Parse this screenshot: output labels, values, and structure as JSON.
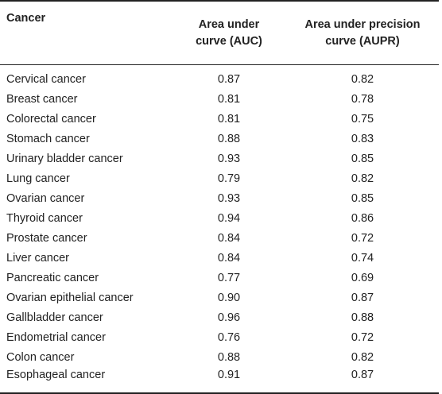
{
  "table": {
    "headers": {
      "cancer": "Cancer",
      "auc_line1": "Area under",
      "auc_line2": "curve (AUC)",
      "aupr_line1": "Area under precision",
      "aupr_line2": "curve (AUPR)"
    },
    "rows": [
      {
        "cancer": "Cervical cancer",
        "auc": "0.87",
        "aupr": "0.82"
      },
      {
        "cancer": "Breast cancer",
        "auc": "0.81",
        "aupr": "0.78"
      },
      {
        "cancer": "Colorectal cancer",
        "auc": "0.81",
        "aupr": "0.75"
      },
      {
        "cancer": "Stomach cancer",
        "auc": "0.88",
        "aupr": "0.83"
      },
      {
        "cancer": "Urinary bladder cancer",
        "auc": "0.93",
        "aupr": "0.85"
      },
      {
        "cancer": "Lung cancer",
        "auc": "0.79",
        "aupr": "0.82"
      },
      {
        "cancer": "Ovarian cancer",
        "auc": "0.93",
        "aupr": "0.85"
      },
      {
        "cancer": "Thyroid cancer",
        "auc": "0.94",
        "aupr": "0.86"
      },
      {
        "cancer": "Prostate cancer",
        "auc": "0.84",
        "aupr": "0.72"
      },
      {
        "cancer": "Liver cancer",
        "auc": "0.84",
        "aupr": "0.74"
      },
      {
        "cancer": "Pancreatic cancer",
        "auc": "0.77",
        "aupr": "0.69"
      },
      {
        "cancer": "Ovarian epithelial cancer",
        "auc": "0.90",
        "aupr": "0.87"
      },
      {
        "cancer": "Gallbladder cancer",
        "auc": "0.96",
        "aupr": "0.88"
      },
      {
        "cancer": "Endometrial cancer",
        "auc": "0.76",
        "aupr": "0.72"
      },
      {
        "cancer": "Colon cancer",
        "auc": "0.88",
        "aupr": "0.82"
      },
      {
        "cancer": "Esophageal cancer",
        "auc": "0.91",
        "aupr": "0.87"
      }
    ]
  }
}
